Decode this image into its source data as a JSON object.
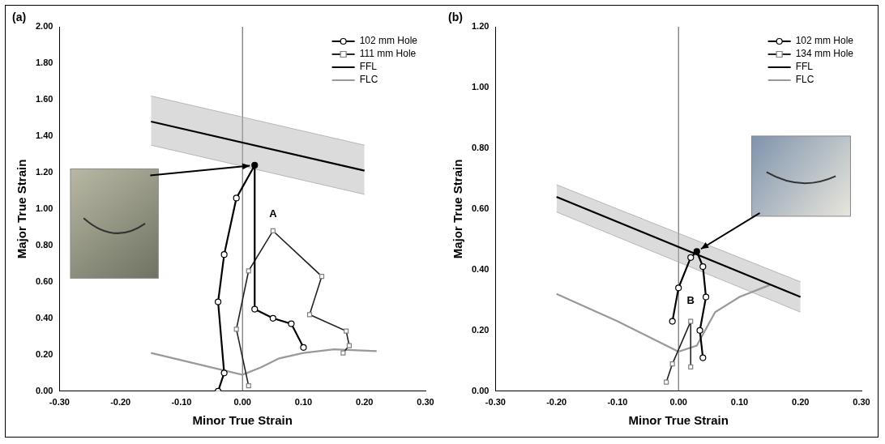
{
  "chart_data": [
    {
      "type": "scatter",
      "panel_label": "(a)",
      "x_label": "Minor True Strain",
      "y_label": "Major True Strain",
      "xlim": [
        -0.3,
        0.3
      ],
      "xticks": [
        {
          "value": -0.3,
          "label": "-0.30"
        },
        {
          "value": -0.2,
          "label": "-0.20"
        },
        {
          "value": -0.1,
          "label": "-0.10"
        },
        {
          "value": 0,
          "label": "0.00"
        },
        {
          "value": 0.1,
          "label": "0.10"
        },
        {
          "value": 0.2,
          "label": "0.20"
        },
        {
          "value": 0.3,
          "label": "0.30"
        }
      ],
      "ylim": [
        0,
        2.0
      ],
      "yticks": [
        {
          "value": 0,
          "label": "0.00"
        },
        {
          "value": 0.2,
          "label": "0.20"
        },
        {
          "value": 0.4,
          "label": "0.40"
        },
        {
          "value": 0.6,
          "label": "0.60"
        },
        {
          "value": 0.8,
          "label": "0.80"
        },
        {
          "value": 1.0,
          "label": "1.00"
        },
        {
          "value": 1.2,
          "label": "1.20"
        },
        {
          "value": 1.4,
          "label": "1.40"
        },
        {
          "value": 1.6,
          "label": "1.60"
        },
        {
          "value": 1.8,
          "label": "1.80"
        },
        {
          "value": 2.0,
          "label": "2.00"
        }
      ],
      "grid": false,
      "legend": "upper right",
      "series": [
        {
          "name": "102 mm Hole",
          "color": "#000000",
          "marker": "circle",
          "line_style": "solid",
          "x": [
            0.1,
            0.08,
            0.05,
            0.02,
            0.02,
            -0.01,
            -0.03,
            -0.04,
            -0.03,
            -0.04
          ],
          "values": [
            0.24,
            0.37,
            0.4,
            0.45,
            1.24,
            1.06,
            0.75,
            0.49,
            0.1,
            0.0
          ]
        },
        {
          "name": "111 mm Hole",
          "color": "#222222",
          "marker": "square",
          "line_style": "solid",
          "x": [
            0.01,
            -0.01,
            0.01,
            0.05,
            0.13,
            0.11,
            0.17,
            0.175,
            0.165
          ],
          "values": [
            0.03,
            0.34,
            0.66,
            0.88,
            0.63,
            0.42,
            0.33,
            0.25,
            0.21
          ]
        },
        {
          "name": "FFL",
          "color": "#000000",
          "marker": "none",
          "line_style": "solid",
          "x": [
            -0.15,
            0.2
          ],
          "values": [
            1.48,
            1.21
          ],
          "upper": [
            1.62,
            1.35
          ],
          "lower": [
            1.35,
            1.08
          ]
        },
        {
          "name": "FLC",
          "color": "#999999",
          "marker": "none",
          "line_style": "solid",
          "x": [
            -0.15,
            -0.1,
            -0.05,
            0.0,
            0.03,
            0.06,
            0.1,
            0.15,
            0.22
          ],
          "values": [
            0.21,
            0.17,
            0.13,
            0.09,
            0.13,
            0.18,
            0.21,
            0.23,
            0.22
          ]
        }
      ],
      "annotations": [
        {
          "text": "A",
          "x": 0.05,
          "y": 0.94
        }
      ]
    },
    {
      "type": "scatter",
      "panel_label": "(b)",
      "x_label": "Minor True Strain",
      "y_label": "Major True Strain",
      "xlim": [
        -0.3,
        0.3
      ],
      "xticks": [
        {
          "value": -0.3,
          "label": "-0.30"
        },
        {
          "value": -0.2,
          "label": "-0.20"
        },
        {
          "value": -0.1,
          "label": "-0.10"
        },
        {
          "value": 0,
          "label": "0.00"
        },
        {
          "value": 0.1,
          "label": "0.10"
        },
        {
          "value": 0.2,
          "label": "0.20"
        },
        {
          "value": 0.3,
          "label": "0.30"
        }
      ],
      "ylim": [
        0,
        1.2
      ],
      "yticks": [
        {
          "value": 0,
          "label": "0.00"
        },
        {
          "value": 0.2,
          "label": "0.20"
        },
        {
          "value": 0.4,
          "label": "0.40"
        },
        {
          "value": 0.6,
          "label": "0.60"
        },
        {
          "value": 0.8,
          "label": "0.80"
        },
        {
          "value": 1.0,
          "label": "1.00"
        },
        {
          "value": 1.2,
          "label": "1.20"
        }
      ],
      "grid": false,
      "legend": "upper right",
      "series": [
        {
          "name": "102 mm Hole",
          "color": "#000000",
          "marker": "circle",
          "line_style": "solid",
          "x": [
            -0.01,
            0.0,
            0.02,
            0.03,
            0.04,
            0.045,
            0.035,
            0.04
          ],
          "values": [
            0.23,
            0.34,
            0.44,
            0.46,
            0.41,
            0.31,
            0.2,
            0.11
          ]
        },
        {
          "name": "134 mm Hole",
          "color": "#222222",
          "marker": "square",
          "line_style": "solid",
          "x": [
            -0.02,
            -0.01,
            0.02,
            0.02
          ],
          "values": [
            0.03,
            0.09,
            0.23,
            0.08
          ]
        },
        {
          "name": "FFL",
          "color": "#000000",
          "marker": "none",
          "line_style": "solid",
          "x": [
            -0.2,
            0.2
          ],
          "values": [
            0.64,
            0.31
          ],
          "upper": [
            0.68,
            0.36
          ],
          "lower": [
            0.59,
            0.26
          ]
        },
        {
          "name": "FLC",
          "color": "#999999",
          "marker": "none",
          "line_style": "solid",
          "x": [
            -0.2,
            -0.1,
            0.0,
            0.03,
            0.06,
            0.1,
            0.15
          ],
          "values": [
            0.32,
            0.23,
            0.13,
            0.15,
            0.26,
            0.31,
            0.35
          ]
        }
      ],
      "annotations": [
        {
          "text": "B",
          "x": 0.02,
          "y": 0.28
        }
      ]
    }
  ]
}
